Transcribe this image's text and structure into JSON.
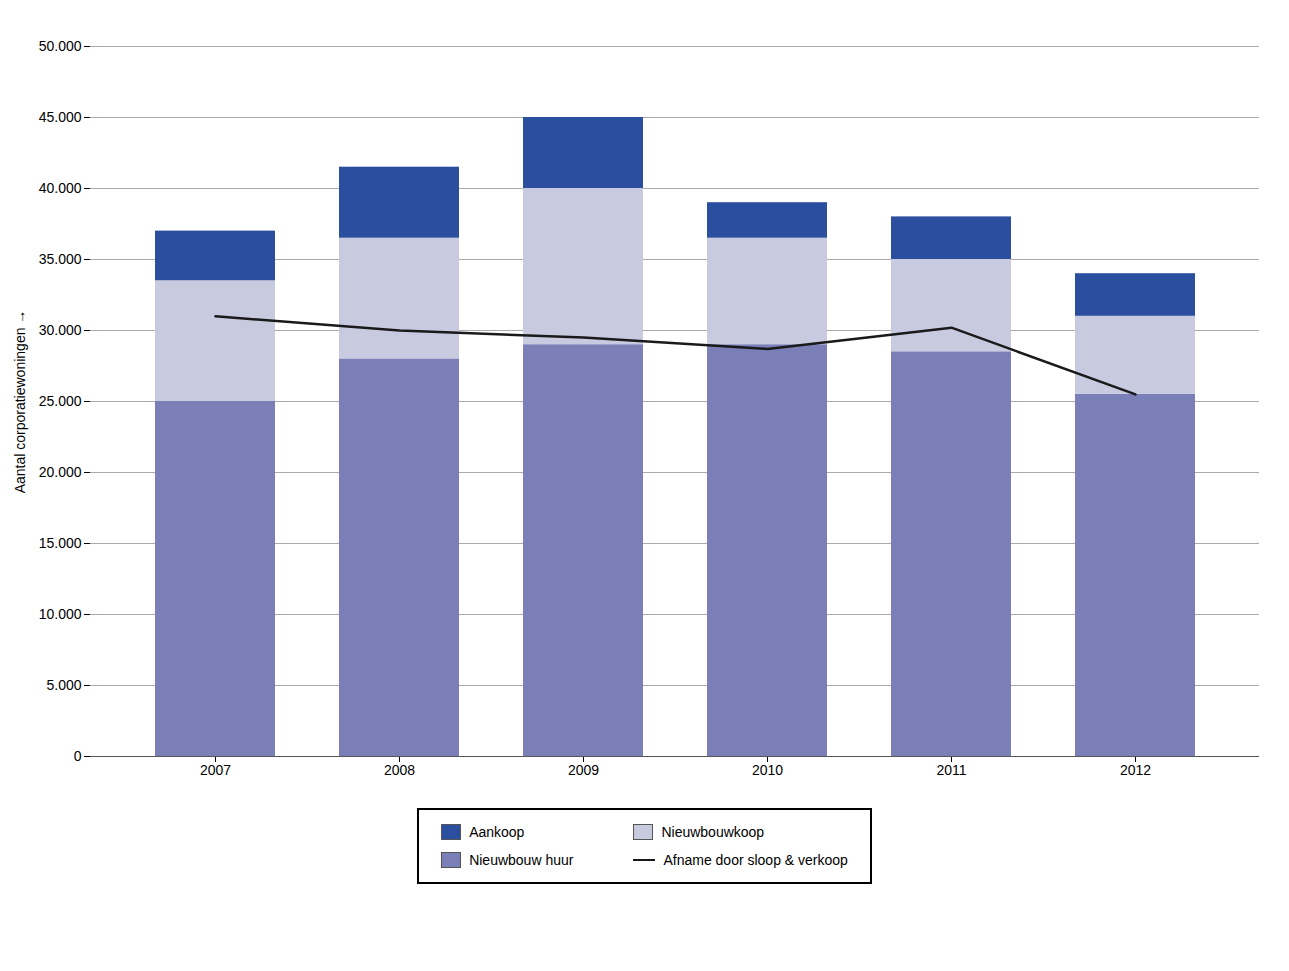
{
  "chart_data": {
    "type": "bar",
    "stacked": true,
    "categories": [
      "2007",
      "2008",
      "2009",
      "2010",
      "2011",
      "2012"
    ],
    "series": [
      {
        "name": "Nieuwbouw huur",
        "type": "bar",
        "color": "#7b7fb8",
        "values": [
          25000,
          28000,
          29000,
          29000,
          28500,
          25500
        ]
      },
      {
        "name": "Nieuwbouwkoop",
        "type": "bar",
        "color": "#c8cadf",
        "values": [
          8500,
          8500,
          11000,
          7500,
          6500,
          5500
        ]
      },
      {
        "name": "Aankoop",
        "type": "bar",
        "color": "#2b4f9e",
        "values": [
          3500,
          5000,
          5000,
          2500,
          3000,
          3000
        ]
      },
      {
        "name": "Afname door sloop & verkoop",
        "type": "line",
        "color": "#1a1a1a",
        "values": [
          31000,
          30000,
          29500,
          28700,
          30200,
          25500
        ]
      }
    ],
    "ylabel": "Aantal corporatiewoningen",
    "ylim": [
      0,
      50000
    ],
    "yticks": [
      0,
      {
        "value": 5000,
        "label": "5.000"
      },
      {
        "value": 10000,
        "label": "10.000"
      },
      {
        "value": 15000,
        "label": "15.000"
      },
      {
        "value": 20000,
        "label": "20.000"
      },
      {
        "value": 25000,
        "label": "25.000"
      },
      {
        "value": 30000,
        "label": "30.000"
      },
      {
        "value": 35000,
        "label": "35.000"
      },
      {
        "value": 40000,
        "label": "40.000"
      },
      {
        "value": 45000,
        "label": "45.000"
      },
      {
        "value": 50000,
        "label": "50.000"
      }
    ],
    "grid": true,
    "legend": "bottom"
  }
}
